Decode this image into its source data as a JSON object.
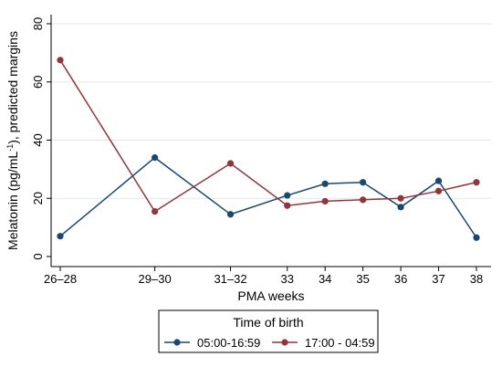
{
  "chart_data": {
    "type": "line",
    "xlabel": "PMA weeks",
    "ylabel": "Melatonin (pg/mL",
    "ylabel_sup": "-1",
    "ylabel_tail": "), predicted margins",
    "categories": [
      "26–28",
      "29–30",
      "31–32",
      "33",
      "34",
      "35",
      "36",
      "37",
      "38"
    ],
    "x_positions": [
      27,
      29.5,
      31.5,
      33,
      34,
      35,
      36,
      37,
      38
    ],
    "yticks": [
      0,
      20,
      40,
      60,
      80
    ],
    "ylim": [
      0,
      80
    ],
    "grid": true,
    "legend": {
      "title": "Time of birth",
      "position": "bottom"
    },
    "series": [
      {
        "name": "05:00-16:59",
        "color": "#1a476f",
        "values": [
          7,
          34,
          14.5,
          21,
          25,
          25.5,
          17,
          26,
          6.5
        ]
      },
      {
        "name": "17:00 - 04:59",
        "color": "#90353b",
        "values": [
          67.5,
          15.5,
          32,
          17.5,
          19,
          19.5,
          20,
          22.5,
          25.5
        ]
      }
    ]
  }
}
